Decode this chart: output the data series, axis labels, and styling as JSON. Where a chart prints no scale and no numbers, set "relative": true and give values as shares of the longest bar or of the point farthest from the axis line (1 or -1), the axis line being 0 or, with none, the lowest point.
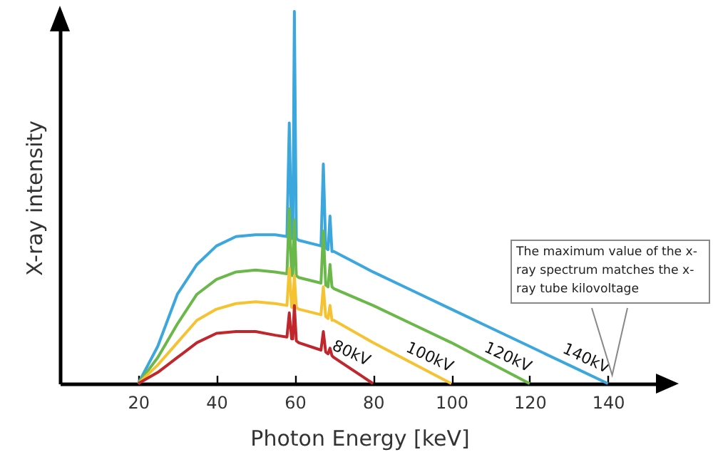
{
  "chart_data": {
    "type": "line",
    "relative": true,
    "xlabel": "Photon Energy [keV]",
    "ylabel": "X-ray intensity",
    "xlim": [
      0,
      153
    ],
    "xticks": [
      20,
      40,
      60,
      80,
      100,
      120,
      140
    ],
    "grid": false,
    "marker": "none",
    "line_style": "solid",
    "annotations": [
      "The maximum value of the x-ray spectrum matches the x-ray tube kilovoltage"
    ],
    "series": [
      {
        "name": "140kV",
        "color": "#3ba7dc",
        "x": [
          20,
          25,
          30,
          35,
          40,
          45,
          50,
          55,
          58,
          58.6,
          59.2,
          59.5,
          59.9,
          60.4,
          61,
          66.7,
          67.3,
          67.9,
          68.5,
          69,
          69.5,
          70,
          80,
          90,
          100,
          110,
          120,
          130,
          140
        ],
        "values": [
          0,
          0.1,
          0.24,
          0.32,
          0.37,
          0.395,
          0.4,
          0.4,
          0.395,
          0.7,
          0.39,
          0.39,
          1,
          0.39,
          0.385,
          0.37,
          0.59,
          0.365,
          0.36,
          0.45,
          0.355,
          0.355,
          0.3,
          0.25,
          0.2,
          0.15,
          0.1,
          0.05,
          0
        ]
      },
      {
        "name": "120kV",
        "color": "#6ab74a",
        "x": [
          20,
          25,
          30,
          35,
          40,
          45,
          50,
          55,
          58,
          58.6,
          59.2,
          59.5,
          59.9,
          60.4,
          61,
          66.7,
          67.3,
          67.9,
          68.5,
          69,
          69.5,
          70,
          80,
          90,
          100,
          110,
          120
        ],
        "values": [
          0,
          0.07,
          0.16,
          0.24,
          0.28,
          0.3,
          0.305,
          0.3,
          0.295,
          0.47,
          0.29,
          0.29,
          0.44,
          0.29,
          0.285,
          0.27,
          0.41,
          0.265,
          0.26,
          0.32,
          0.26,
          0.255,
          0.21,
          0.16,
          0.11,
          0.055,
          0
        ]
      },
      {
        "name": "100kV",
        "color": "#f5c232",
        "x": [
          20,
          25,
          30,
          35,
          40,
          45,
          50,
          55,
          58,
          58.6,
          59.2,
          59.5,
          59.9,
          60.4,
          61,
          66.7,
          67.3,
          67.9,
          68.5,
          69,
          69.5,
          70,
          80,
          90,
          100
        ],
        "values": [
          0,
          0.05,
          0.11,
          0.17,
          0.2,
          0.215,
          0.22,
          0.215,
          0.21,
          0.31,
          0.205,
          0.205,
          0.29,
          0.205,
          0.2,
          0.185,
          0.26,
          0.18,
          0.175,
          0.21,
          0.17,
          0.17,
          0.11,
          0.055,
          0
        ]
      },
      {
        "name": "80kV",
        "color": "#c0272d",
        "x": [
          20,
          25,
          30,
          35,
          40,
          45,
          50,
          55,
          58,
          58.6,
          59.2,
          59.5,
          59.9,
          60.4,
          61,
          66.7,
          67.3,
          67.9,
          68.5,
          69,
          69.5,
          70,
          80
        ],
        "values": [
          0,
          0.03,
          0.07,
          0.11,
          0.135,
          0.14,
          0.14,
          0.13,
          0.125,
          0.19,
          0.12,
          0.12,
          0.21,
          0.115,
          0.11,
          0.09,
          0.14,
          0.085,
          0.08,
          0.095,
          0.075,
          0.07,
          0
        ]
      }
    ]
  }
}
